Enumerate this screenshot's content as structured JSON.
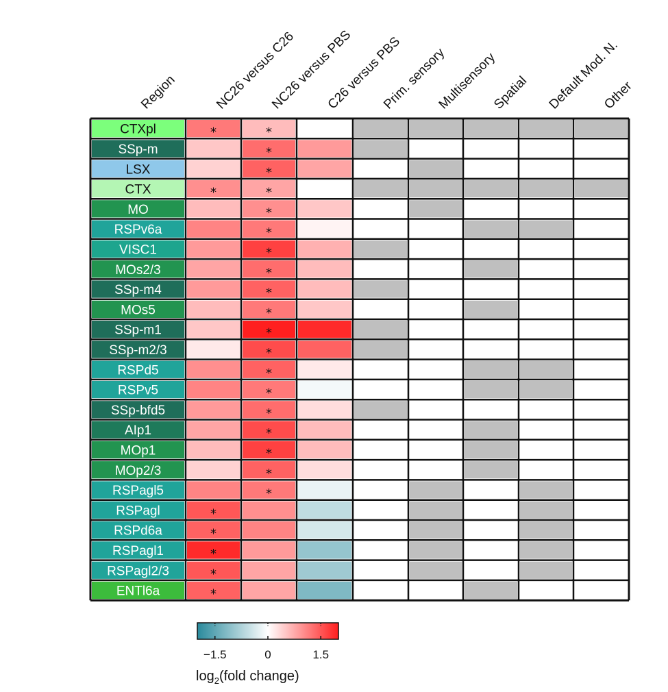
{
  "chart_data": {
    "type": "heatmap",
    "row_header": "Region",
    "columns": [
      "NC26 versus C26",
      "NC26 versus PBS",
      "C26 versus PBS",
      "Prim. sensory",
      "Multisensory",
      "Spatial",
      "Default Mod. N.",
      "Other"
    ],
    "heat_columns": [
      "NC26 versus C26",
      "NC26 versus PBS",
      "C26 versus PBS"
    ],
    "category_columns": [
      "Prim. sensory",
      "Multisensory",
      "Spatial",
      "Default Mod. N.",
      "Other"
    ],
    "rows": [
      {
        "region": "CTXpl",
        "label_color": "#7cff7c",
        "label_text_color": "#111111",
        "values": [
          1.2,
          0.6,
          0.0
        ],
        "stars": [
          true,
          true,
          false
        ],
        "categories": [
          1,
          1,
          1,
          1,
          1
        ]
      },
      {
        "region": "SSp-m",
        "label_color": "#1f6e5a",
        "label_text_color": "#ffffff",
        "values": [
          0.5,
          1.3,
          0.9
        ],
        "stars": [
          false,
          true,
          false
        ],
        "categories": [
          1,
          0,
          0,
          0,
          0
        ]
      },
      {
        "region": "LSX",
        "label_color": "#8fc8ea",
        "label_text_color": "#111111",
        "values": [
          0.4,
          1.4,
          0.8
        ],
        "stars": [
          false,
          true,
          false
        ],
        "categories": [
          0,
          1,
          0,
          0,
          0
        ]
      },
      {
        "region": "CTX",
        "label_color": "#b4f6b4",
        "label_text_color": "#111111",
        "values": [
          1.0,
          0.8,
          0.0
        ],
        "stars": [
          true,
          true,
          false
        ],
        "categories": [
          1,
          1,
          1,
          1,
          1
        ]
      },
      {
        "region": "MO",
        "label_color": "#229450",
        "label_text_color": "#ffffff",
        "values": [
          0.6,
          1.0,
          0.5
        ],
        "stars": [
          false,
          true,
          false
        ],
        "categories": [
          0,
          1,
          0,
          0,
          0
        ]
      },
      {
        "region": "RSPv6a",
        "label_color": "#20a49a",
        "label_text_color": "#ffffff",
        "values": [
          1.1,
          1.2,
          0.1
        ],
        "stars": [
          false,
          true,
          false
        ],
        "categories": [
          0,
          0,
          1,
          1,
          0
        ]
      },
      {
        "region": "VISC1",
        "label_color": "#1ea58e",
        "label_text_color": "#ffffff",
        "values": [
          0.9,
          1.7,
          0.7
        ],
        "stars": [
          false,
          true,
          false
        ],
        "categories": [
          1,
          0,
          0,
          0,
          0
        ]
      },
      {
        "region": "MOs2/3",
        "label_color": "#229450",
        "label_text_color": "#ffffff",
        "values": [
          0.8,
          1.3,
          0.6
        ],
        "stars": [
          false,
          true,
          false
        ],
        "categories": [
          0,
          0,
          1,
          0,
          0
        ]
      },
      {
        "region": "SSp-m4",
        "label_color": "#1f6e5a",
        "label_text_color": "#ffffff",
        "values": [
          0.9,
          1.4,
          0.6
        ],
        "stars": [
          false,
          true,
          false
        ],
        "categories": [
          1,
          0,
          0,
          0,
          0
        ]
      },
      {
        "region": "MOs5",
        "label_color": "#229450",
        "label_text_color": "#ffffff",
        "values": [
          0.6,
          1.2,
          0.5
        ],
        "stars": [
          false,
          true,
          false
        ],
        "categories": [
          0,
          0,
          1,
          0,
          0
        ]
      },
      {
        "region": "SSp-m1",
        "label_color": "#1f6e5a",
        "label_text_color": "#ffffff",
        "values": [
          0.5,
          2.1,
          1.9
        ],
        "stars": [
          false,
          true,
          false
        ],
        "categories": [
          1,
          0,
          0,
          0,
          0
        ]
      },
      {
        "region": "SSp-m2/3",
        "label_color": "#1f6e5a",
        "label_text_color": "#ffffff",
        "values": [
          0.2,
          1.6,
          1.4
        ],
        "stars": [
          false,
          true,
          false
        ],
        "categories": [
          1,
          0,
          0,
          0,
          0
        ]
      },
      {
        "region": "RSPd5",
        "label_color": "#20a49a",
        "label_text_color": "#ffffff",
        "values": [
          1.0,
          1.4,
          0.2
        ],
        "stars": [
          false,
          true,
          false
        ],
        "categories": [
          0,
          0,
          1,
          1,
          0
        ]
      },
      {
        "region": "RSPv5",
        "label_color": "#20a49a",
        "label_text_color": "#ffffff",
        "values": [
          1.1,
          1.2,
          -0.1
        ],
        "stars": [
          false,
          true,
          false
        ],
        "categories": [
          0,
          0,
          1,
          1,
          0
        ]
      },
      {
        "region": "SSp-bfd5",
        "label_color": "#1f6e5a",
        "label_text_color": "#ffffff",
        "values": [
          0.9,
          1.3,
          0.3
        ],
        "stars": [
          false,
          true,
          false
        ],
        "categories": [
          1,
          0,
          0,
          0,
          0
        ]
      },
      {
        "region": "AIp1",
        "label_color": "#1e7a5a",
        "label_text_color": "#ffffff",
        "values": [
          0.8,
          1.6,
          0.6
        ],
        "stars": [
          false,
          true,
          false
        ],
        "categories": [
          0,
          0,
          1,
          0,
          0
        ]
      },
      {
        "region": "MOp1",
        "label_color": "#229450",
        "label_text_color": "#ffffff",
        "values": [
          0.6,
          1.7,
          0.6
        ],
        "stars": [
          false,
          true,
          false
        ],
        "categories": [
          0,
          0,
          1,
          0,
          0
        ]
      },
      {
        "region": "MOp2/3",
        "label_color": "#229450",
        "label_text_color": "#ffffff",
        "values": [
          0.4,
          1.4,
          0.3
        ],
        "stars": [
          false,
          true,
          false
        ],
        "categories": [
          0,
          0,
          1,
          0,
          0
        ]
      },
      {
        "region": "RSPagl5",
        "label_color": "#20a49a",
        "label_text_color": "#ffffff",
        "values": [
          1.1,
          1.2,
          -0.2
        ],
        "stars": [
          false,
          true,
          false
        ],
        "categories": [
          0,
          1,
          0,
          1,
          0
        ]
      },
      {
        "region": "RSPagl",
        "label_color": "#20a49a",
        "label_text_color": "#ffffff",
        "values": [
          1.5,
          1.0,
          -0.6
        ],
        "stars": [
          true,
          false,
          false
        ],
        "categories": [
          0,
          1,
          0,
          1,
          0
        ]
      },
      {
        "region": "RSPd6a",
        "label_color": "#20a49a",
        "label_text_color": "#ffffff",
        "values": [
          1.4,
          1.1,
          -0.4
        ],
        "stars": [
          true,
          false,
          false
        ],
        "categories": [
          0,
          1,
          0,
          1,
          0
        ]
      },
      {
        "region": "RSPagl1",
        "label_color": "#20a49a",
        "label_text_color": "#ffffff",
        "values": [
          1.9,
          0.9,
          -1.0
        ],
        "stars": [
          true,
          false,
          false
        ],
        "categories": [
          0,
          1,
          0,
          1,
          0
        ]
      },
      {
        "region": "RSPagl2/3",
        "label_color": "#20a49a",
        "label_text_color": "#ffffff",
        "values": [
          1.5,
          0.8,
          -0.9
        ],
        "stars": [
          true,
          false,
          false
        ],
        "categories": [
          0,
          1,
          0,
          1,
          0
        ]
      },
      {
        "region": "ENTl6a",
        "label_color": "#3cbc3c",
        "label_text_color": "#ffffff",
        "values": [
          1.4,
          0.8,
          -1.2
        ],
        "stars": [
          true,
          false,
          false
        ],
        "categories": [
          0,
          0,
          1,
          0,
          0
        ]
      }
    ],
    "colorbar": {
      "min": -2,
      "max": 2,
      "ticks": [
        -1.5,
        0,
        1.5
      ],
      "tick_labels": [
        "−1.5",
        "0",
        "1.5"
      ],
      "low_color": "#2a8a9c",
      "mid_color": "#ffffff",
      "high_color": "#ff1f1f",
      "label_prefix": "log",
      "label_subscript": "2",
      "label_suffix": "(fold change)"
    },
    "category_on_color": "#bfbfbf",
    "category_off_color": "#ffffff",
    "star_symbol": "*"
  }
}
